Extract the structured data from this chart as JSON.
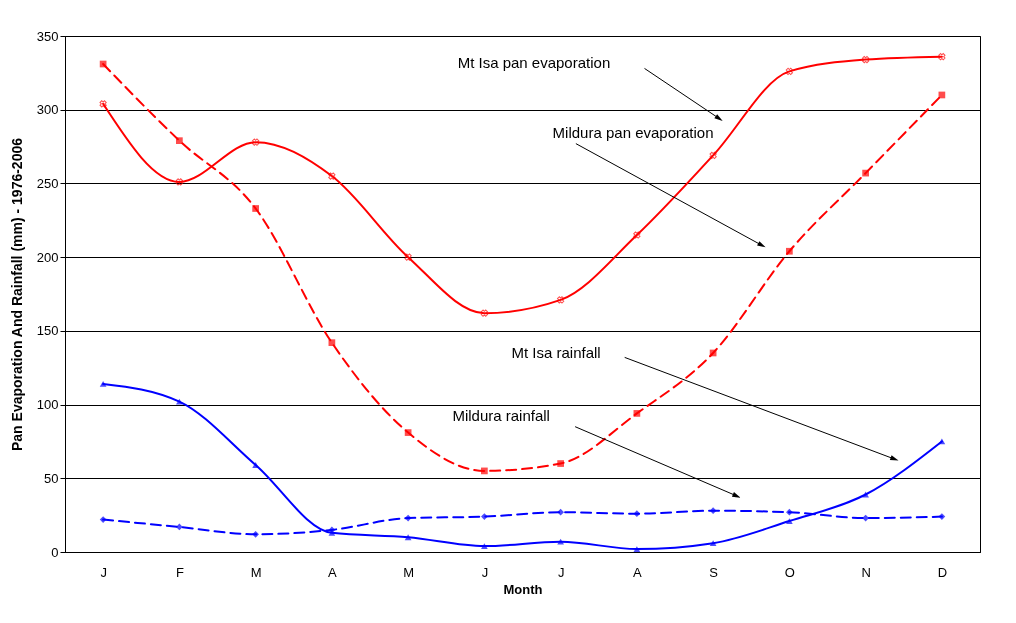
{
  "chart_data": {
    "type": "line",
    "xlabel": "Month",
    "ylabel": "Pan Evaporation And Rainfall (mm) - 1976-2006",
    "categories": [
      "J",
      "F",
      "M",
      "A",
      "M",
      "J",
      "J",
      "A",
      "S",
      "O",
      "N",
      "D"
    ],
    "series": [
      {
        "color": "#ff0000",
        "marker": "cross",
        "line_style": "solid",
        "values": [
          304,
          251,
          278,
          255,
          200,
          162,
          171,
          215,
          269,
          326,
          334,
          336
        ]
      },
      {
        "color": "#ff0000",
        "marker": "square",
        "line_style": "dashed",
        "values": [
          331,
          279,
          233,
          142,
          81,
          55,
          60,
          94,
          135,
          204,
          257,
          310
        ]
      },
      {
        "color": "#0000ff",
        "marker": "triangle",
        "line_style": "solid",
        "values": [
          114,
          102,
          59,
          13,
          10,
          4,
          7,
          2,
          6,
          21,
          39,
          75
        ]
      },
      {
        "color": "#0000ff",
        "marker": "diamond",
        "line_style": "dashed",
        "values": [
          22,
          17,
          12,
          15,
          23,
          24,
          27,
          26,
          28,
          27,
          23,
          24
        ]
      }
    ],
    "annotations": [
      "Mt Isa pan evaporation",
      "Mildura pan evaporation",
      "Mt Isa rainfall",
      "Mildura rainfall"
    ],
    "ylim": [
      0,
      350
    ],
    "yticks": [
      0,
      50,
      100,
      150,
      200,
      250,
      300,
      350
    ],
    "grid": "y"
  }
}
